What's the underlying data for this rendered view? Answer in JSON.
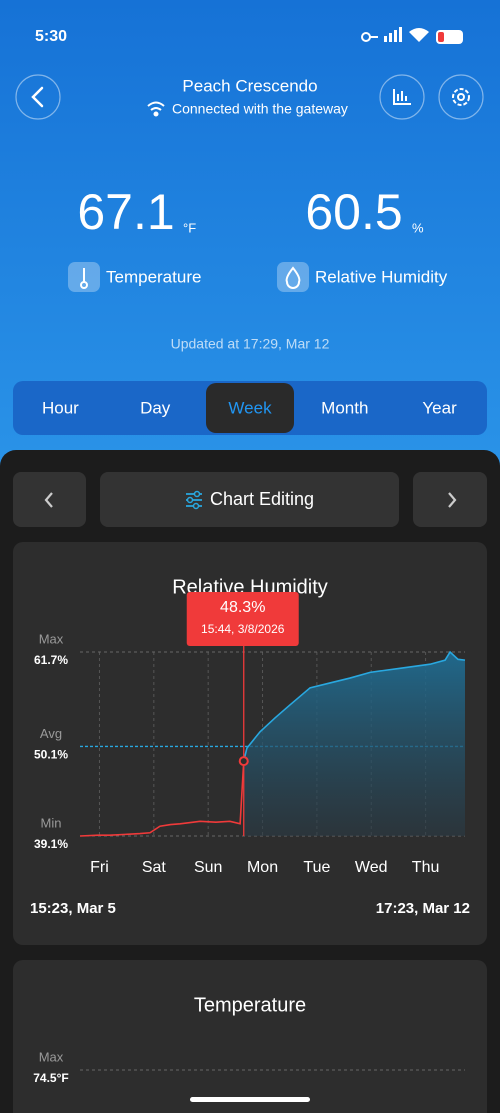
{
  "status": {
    "time": "5:30"
  },
  "header": {
    "title": "Peach Crescendo",
    "subtitle": "Connected with the gateway"
  },
  "readings": [
    {
      "value": 67.1,
      "unit": "°F",
      "label": "Temperature"
    },
    {
      "value": 60.5,
      "unit": "%",
      "label": "Relative Humidity"
    }
  ],
  "updated": "Updated at 17:29, Mar 12",
  "tabs": {
    "items": [
      "Hour",
      "Day",
      "Week",
      "Month",
      "Year"
    ],
    "selected": 2
  },
  "toolbar": {
    "label": "Chart Editing"
  },
  "chart_data": [
    {
      "type": "line",
      "title": "Relative Humidity",
      "x": [
        0,
        8,
        13.2,
        20,
        26.5,
        30.9,
        35.3,
        40,
        44.2,
        50,
        53,
        60,
        66.2,
        70.7,
        72.3,
        73.7,
        79.5,
        86.1,
        92.7,
        101.6,
        110.4,
        119.2,
        128.1,
        141.3,
        154.6,
        161.2,
        163.4,
        166.9,
        170
      ],
      "values": [
        39.1,
        39.2,
        39.2,
        39.3,
        39.4,
        39.5,
        40.3,
        40.5,
        40.6,
        40.8,
        40.9,
        40.8,
        40.9,
        40.6,
        48.3,
        49.9,
        51.9,
        53.6,
        55.2,
        57.3,
        57.9,
        58.5,
        59.2,
        59.7,
        60.2,
        60.7,
        61.7,
        60.8,
        60.7
      ],
      "xlim": [
        0,
        170
      ],
      "xticks": [
        {
          "value": 8.6,
          "label": "Fri"
        },
        {
          "value": 32.6,
          "label": "Sat"
        },
        {
          "value": 56.6,
          "label": "Sun"
        },
        {
          "value": 80.6,
          "label": "Mon"
        },
        {
          "value": 104.6,
          "label": "Tue"
        },
        {
          "value": 128.6,
          "label": "Wed"
        },
        {
          "value": 152.6,
          "label": "Thu"
        }
      ],
      "ylim": [
        39.1,
        61.7
      ],
      "yticks": [
        {
          "value": 39.1,
          "label": "39.1%"
        },
        {
          "value": 50.1,
          "label": "50.1%"
        },
        {
          "value": 61.7,
          "label": "61.7%"
        }
      ],
      "ytick_names": [
        "Min",
        "Avg",
        "Max"
      ],
      "avg_tick": 1,
      "grid": true,
      "color": "#29a8e0",
      "highlight_color": "#f03a3a",
      "selected": {
        "index": 14,
        "label": "48.3%",
        "time": "15:44, 3/8/2026"
      },
      "range_labels": [
        "15:23, Mar 5",
        "17:23, Mar 12"
      ]
    },
    {
      "type": "line",
      "title": "Temperature",
      "yticks": [
        {
          "value": 74.5,
          "label": "74.5°F"
        }
      ],
      "ytick_names": [
        "Max"
      ],
      "grid": true,
      "color": "#29a8e0"
    }
  ]
}
